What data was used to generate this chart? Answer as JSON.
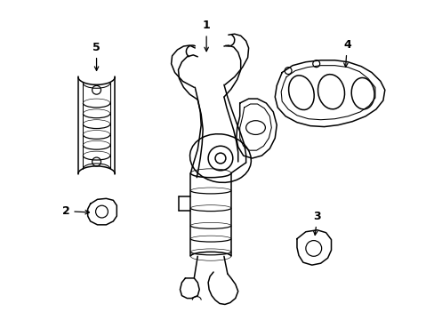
{
  "background_color": "#ffffff",
  "line_color": "#000000",
  "line_width": 1.1,
  "fig_width": 4.89,
  "fig_height": 3.6,
  "dpi": 100
}
